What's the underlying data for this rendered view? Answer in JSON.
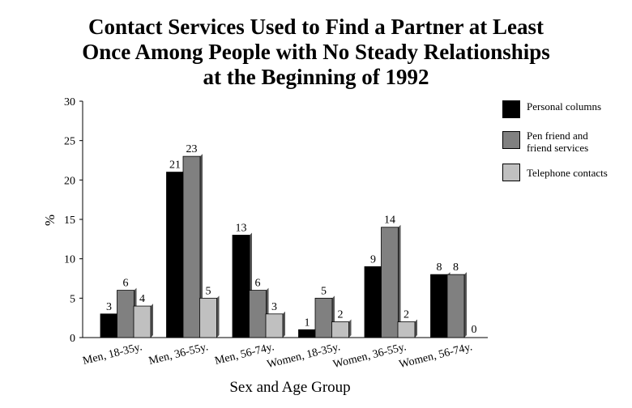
{
  "chart_data": {
    "type": "bar",
    "title": "Contact Services Used to Find a Partner at Least Once Among People with No Steady Relationships at the Beginning of 1992",
    "title_lines": [
      "Contact Services Used to Find a Partner at Least",
      "Once Among People with No Steady Relationships",
      "at the Beginning of 1992"
    ],
    "xlabel": "Sex and Age Group",
    "ylabel": "%",
    "ylim": [
      0,
      30
    ],
    "yticks": [
      0,
      5,
      10,
      15,
      20,
      25,
      30
    ],
    "grid": false,
    "legend_position": "top-right",
    "categories": [
      "Men, 18-35y.",
      "Men, 36-55y.",
      "Men, 56-74y.",
      "Women, 18-35y.",
      "Women, 36-55y.",
      "Women, 56-74y."
    ],
    "series": [
      {
        "name": "Personal columns",
        "color": "#000000",
        "values": [
          3,
          21,
          13,
          1,
          9,
          8
        ]
      },
      {
        "name": "Pen friend and friend services",
        "color": "#808080",
        "values": [
          6,
          23,
          6,
          5,
          14,
          8
        ]
      },
      {
        "name": "Telephone contacts",
        "color": "#c0c0c0",
        "values": [
          4,
          5,
          3,
          2,
          2,
          0
        ]
      }
    ]
  },
  "legend": {
    "items": [
      {
        "label": "Personal columns",
        "color": "#000000"
      },
      {
        "label": "Pen friend and\nfriend services",
        "color": "#808080"
      },
      {
        "label": "Telephone contacts",
        "color": "#c0c0c0"
      }
    ]
  }
}
